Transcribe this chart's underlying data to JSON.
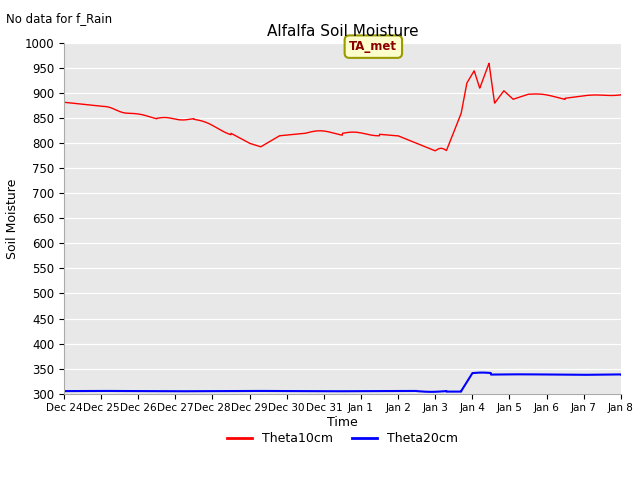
{
  "title": "Alfalfa Soil Moisture",
  "subtitle": "No data for f_Rain",
  "ylabel": "Soil Moisture",
  "xlabel": "Time",
  "ylim": [
    300,
    1000
  ],
  "yticks": [
    300,
    350,
    400,
    450,
    500,
    550,
    600,
    650,
    700,
    750,
    800,
    850,
    900,
    950,
    1000
  ],
  "xtick_labels": [
    "Dec 24",
    "Dec 25",
    "Dec 26",
    "Dec 27",
    "Dec 28",
    "Dec 29",
    "Dec 30",
    "Dec 31",
    "Jan 1",
    "Jan 2",
    "Jan 3",
    "Jan 4",
    "Jan 5",
    "Jan 6",
    "Jan 7",
    "Jan 8"
  ],
  "bg_color": "#e8e8e8",
  "fig_color": "#ffffff",
  "legend_label_box": "TA_met",
  "line1_color": "#ff0000",
  "line2_color": "#0000ff",
  "legend_line1": "Theta10cm",
  "legend_line2": "Theta20cm"
}
